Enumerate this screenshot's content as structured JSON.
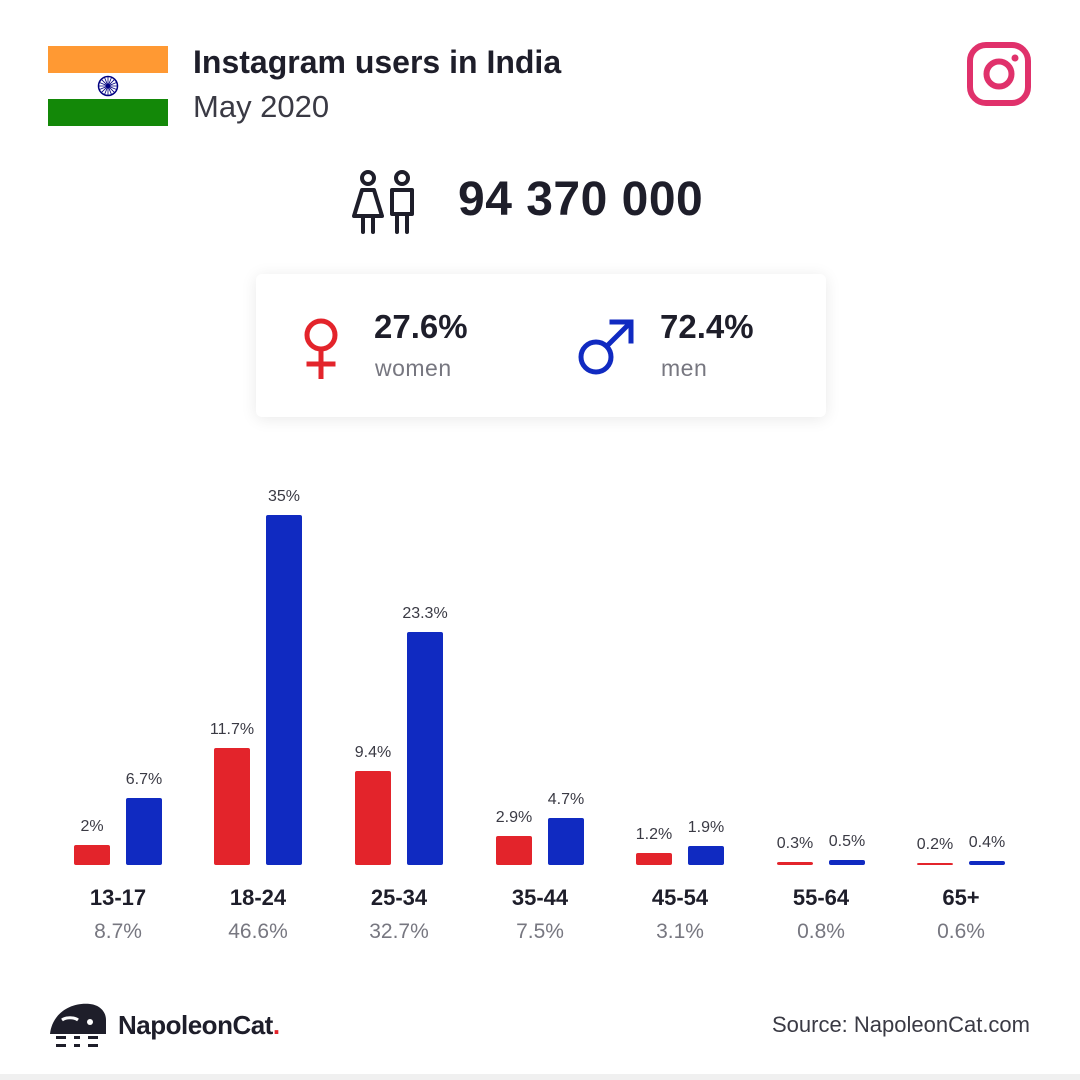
{
  "header": {
    "title": "Instagram users in India",
    "subtitle": "May 2020"
  },
  "icons": {
    "flag": "india-flag-icon",
    "platform": "instagram-icon",
    "people": "people-icon",
    "female": "female-symbol-icon",
    "male": "male-symbol-icon",
    "brand": "napoleoncat-logo-icon"
  },
  "total_users": "94 370 000",
  "gender": {
    "women": {
      "percent": "27.6%",
      "label": "women"
    },
    "men": {
      "percent": "72.4%",
      "label": "men"
    }
  },
  "colors": {
    "women": "#e3242b",
    "men": "#102ac1",
    "instagram": "#e0316b",
    "text": "#1e1e2a"
  },
  "chart_data": {
    "type": "bar",
    "categories": [
      "13-17",
      "18-24",
      "25-34",
      "35-44",
      "45-54",
      "55-64",
      "65+"
    ],
    "totals": [
      "8.7%",
      "46.6%",
      "32.7%",
      "7.5%",
      "3.1%",
      "0.8%",
      "0.6%"
    ],
    "series": [
      {
        "key": "women",
        "values": [
          2,
          11.7,
          9.4,
          2.9,
          1.2,
          0.3,
          0.2
        ],
        "labels": [
          "2%",
          "11.7%",
          "9.4%",
          "2.9%",
          "1.2%",
          "0.3%",
          "0.2%"
        ],
        "color": "#e3242b"
      },
      {
        "key": "men",
        "values": [
          6.7,
          35,
          23.3,
          4.7,
          1.9,
          0.5,
          0.4
        ],
        "labels": [
          "6.7%",
          "35%",
          "23.3%",
          "4.7%",
          "1.9%",
          "0.5%",
          "0.4%"
        ],
        "color": "#102ac1"
      }
    ],
    "ylim": [
      0,
      35
    ],
    "grid": false
  },
  "footer": {
    "brand_name": "NapoleonCat",
    "brand_dot": ".",
    "source": "Source: NapoleonCat.com"
  }
}
